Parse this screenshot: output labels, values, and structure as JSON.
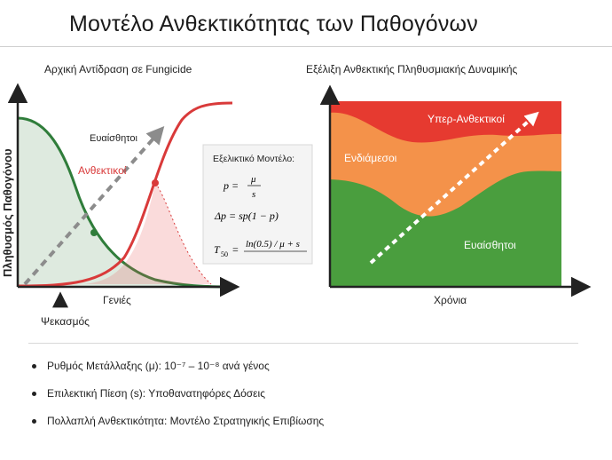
{
  "page": {
    "title": "Μοντέλο Ανθεκτικότητας των Παθογόνων"
  },
  "left_panel": {
    "title": "Αρχική Αντίδραση σε Fungicide",
    "y_axis_label": "Πληθυσμός Παθογόνου",
    "x_axis_label": "Γενιές",
    "spray_label": "Ψεκασμός",
    "label_susceptible": "Ευαίσθητοι",
    "label_resistant": "Ανθεκτικοί",
    "color_susceptible": "#2f7d3a",
    "color_resistant": "#d93a3a",
    "color_trend": "#8c8c8c"
  },
  "model_box": {
    "title": "Εξελικτικό Μοντέλο:",
    "eq1_lhs": "p =",
    "eq1_num": "μ",
    "eq1_den": "s",
    "eq2": "Δp = sp(1 − p)",
    "eq3_lhs": "T",
    "eq3_sub": "50",
    "eq3_eq": "=",
    "eq3_num": "ln(0.5) / μ + s"
  },
  "right_panel": {
    "title": "Εξέλιξη Ανθεκτικής Πληθυσμιακής Δυναμικής",
    "x_axis_label": "Χρόνια",
    "band_top_label": "Υπερ-Ανθεκτικοί",
    "band_mid_label": "Ενδιάμεσοι",
    "band_low_label": "Ευαίσθητοι",
    "color_top": "#e63a30",
    "color_mid": "#f4924a",
    "color_low": "#4a9e3e"
  },
  "bullets": [
    "Ρυθμός Μετάλλαξης (μ): 10⁻⁷ – 10⁻⁸ ανά γένος",
    "Επιλεκτική Πίεση (s): Υποθανατηφόρες Δόσεις",
    "Πολλαπλή Ανθεκτικότητα: Μοντέλο Στρατηγικής Επιβίωσης"
  ]
}
